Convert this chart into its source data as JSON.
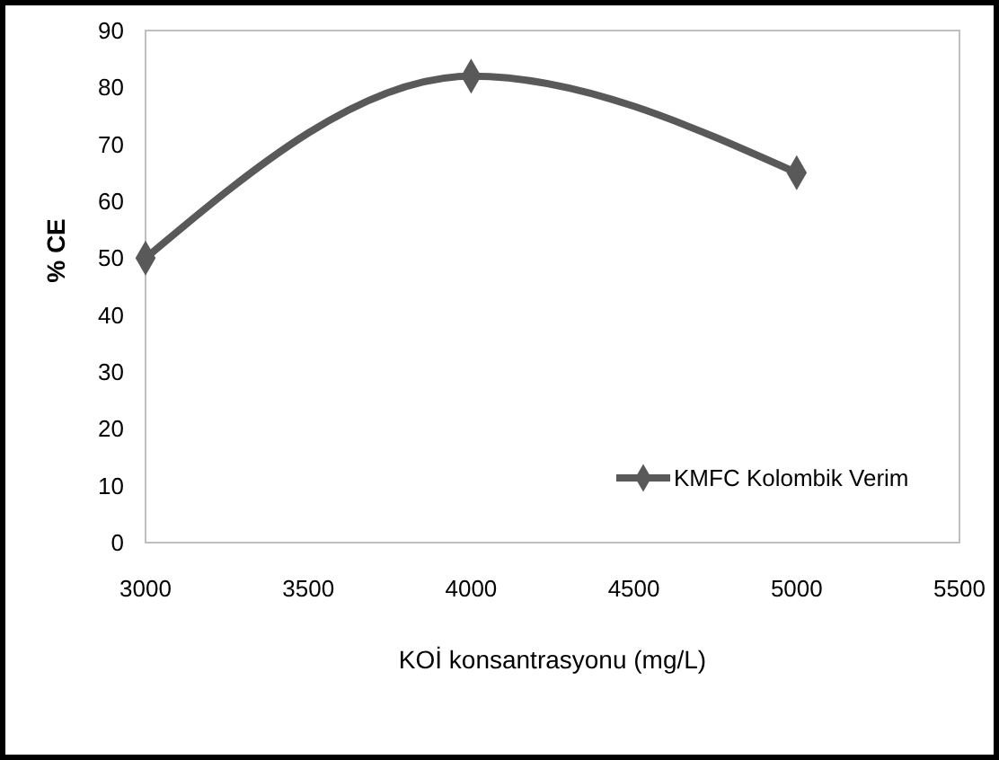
{
  "chart_data": {
    "type": "line",
    "xlabel": "KOİ konsantrasyonu (mg/L)",
    "ylabel": "% CE",
    "x": [
      3000,
      4000,
      5000
    ],
    "series": [
      {
        "name": "KMFC Kolombik Verim",
        "color": "#595959",
        "values": [
          50,
          82,
          65
        ]
      }
    ],
    "xlim": [
      3000,
      5500
    ],
    "xticks": [
      3000,
      3500,
      4000,
      4500,
      5000,
      5500
    ],
    "ylim": [
      0,
      90
    ],
    "yticks": [
      0,
      10,
      20,
      30,
      40,
      50,
      60,
      70,
      80,
      90
    ],
    "grid": false,
    "legend": "bottom right",
    "marker": "diamond",
    "line_style": "solid"
  }
}
